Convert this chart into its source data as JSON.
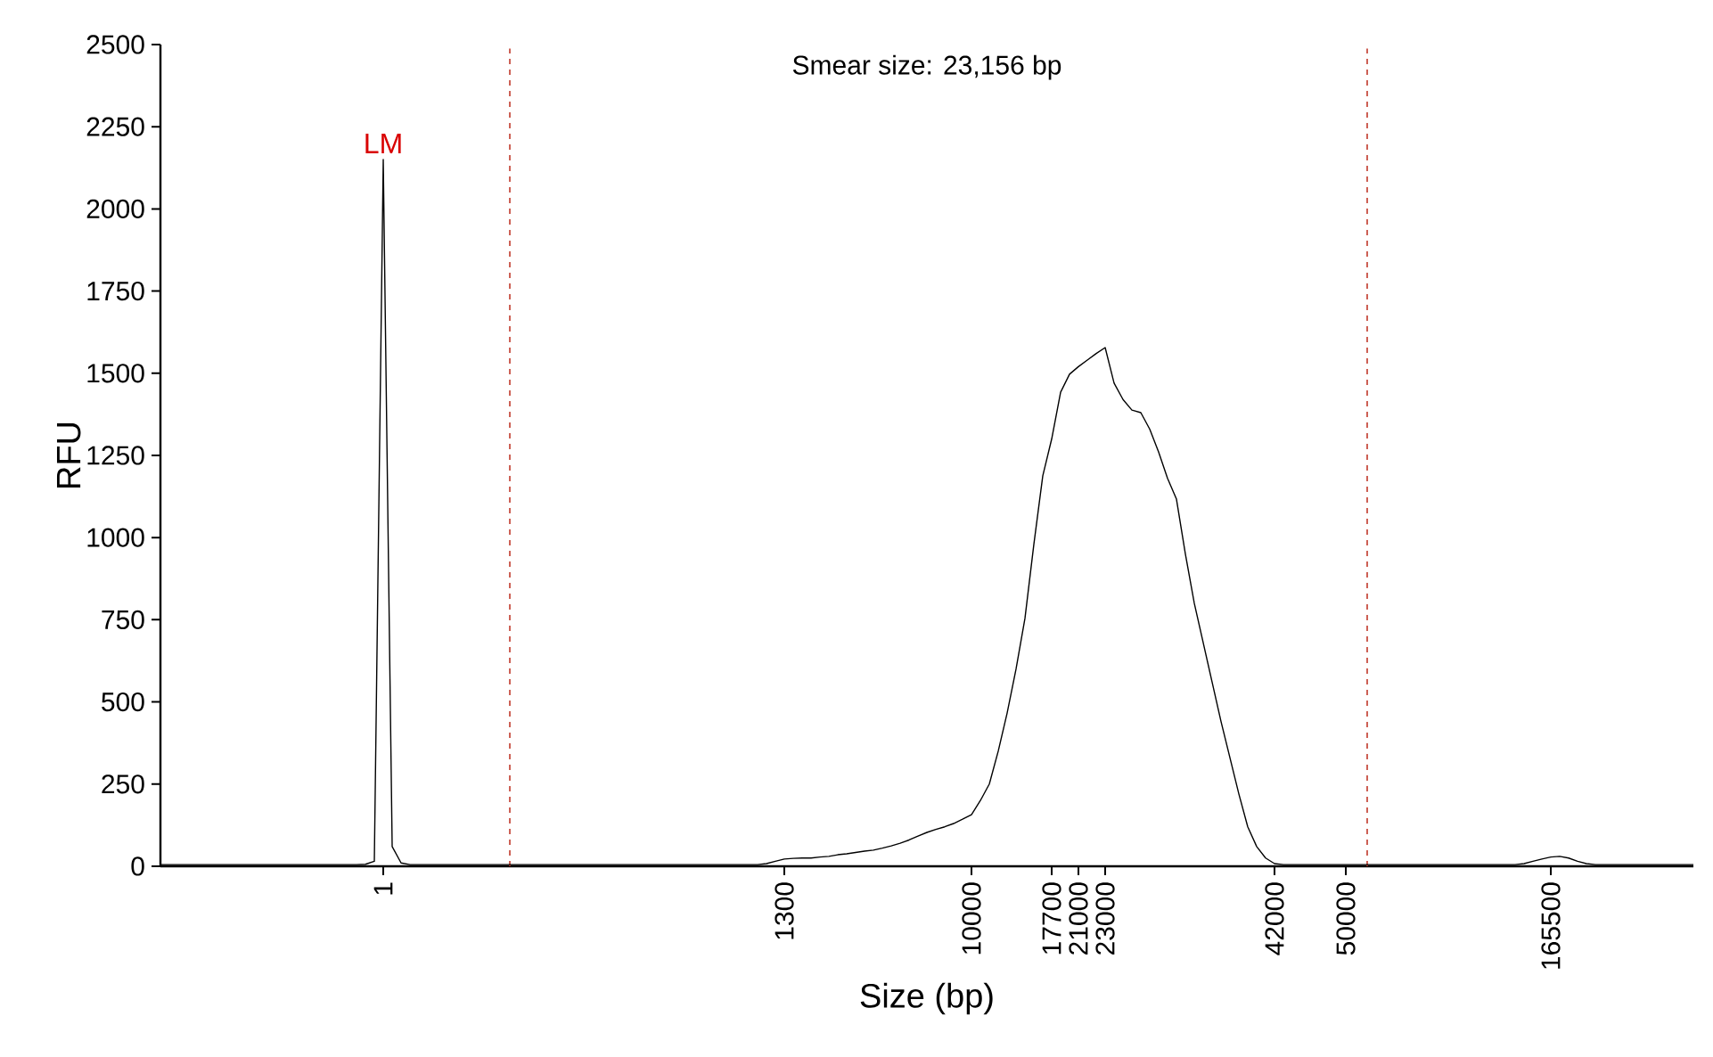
{
  "chart_data": {
    "type": "line",
    "xlabel": "Size (bp)",
    "ylabel": "RFU",
    "annotations": [
      {
        "text": "LM",
        "x": "1",
        "y": 2150
      },
      "Smear size: 23,156 bp"
    ],
    "categories": [
      null,
      null,
      null,
      null,
      null,
      null,
      null,
      null,
      null,
      null,
      null,
      null,
      null,
      null,
      null,
      null,
      null,
      null,
      null,
      null,
      null,
      null,
      null,
      null,
      null,
      "1",
      null,
      null,
      null,
      null,
      null,
      null,
      null,
      null,
      null,
      null,
      null,
      null,
      null,
      null,
      null,
      null,
      null,
      null,
      null,
      null,
      null,
      null,
      null,
      null,
      null,
      null,
      null,
      null,
      null,
      null,
      null,
      null,
      null,
      null,
      null,
      null,
      null,
      null,
      null,
      null,
      null,
      null,
      null,
      null,
      "1300",
      null,
      null,
      null,
      null,
      null,
      null,
      null,
      null,
      null,
      null,
      null,
      null,
      null,
      null,
      null,
      null,
      null,
      null,
      null,
      null,
      "10000",
      null,
      null,
      null,
      null,
      null,
      null,
      null,
      null,
      "17700",
      null,
      null,
      "21000",
      null,
      null,
      "23000",
      null,
      null,
      null,
      null,
      null,
      null,
      null,
      null,
      null,
      null,
      null,
      null,
      null,
      null,
      null,
      null,
      null,
      null,
      "42000",
      null,
      null,
      null,
      null,
      null,
      null,
      null,
      "50000",
      null,
      null,
      null,
      null,
      null,
      null,
      null,
      null,
      null,
      null,
      null,
      null,
      null,
      null,
      null,
      null,
      null,
      null,
      null,
      null,
      null,
      null,
      "165500",
      null,
      null,
      null,
      null,
      null,
      null,
      null,
      null,
      null,
      null,
      null,
      null,
      null,
      null,
      null,
      null
    ],
    "values": [
      5,
      5,
      5,
      5,
      5,
      5,
      5,
      5,
      5,
      5,
      5,
      5,
      5,
      5,
      5,
      5,
      5,
      5,
      5,
      5,
      5,
      5,
      5,
      6,
      15,
      2150,
      60,
      10,
      5,
      5,
      5,
      5,
      5,
      5,
      5,
      5,
      5,
      5,
      5,
      5,
      5,
      5,
      5,
      5,
      5,
      5,
      5,
      5,
      5,
      5,
      5,
      5,
      5,
      5,
      5,
      5,
      5,
      5,
      5,
      5,
      5,
      5,
      5,
      5,
      5,
      5,
      5,
      5,
      8,
      15,
      22,
      24,
      25,
      25,
      28,
      30,
      35,
      38,
      42,
      46,
      49,
      55,
      62,
      70,
      80,
      92,
      103,
      112,
      120,
      130,
      143,
      157,
      200,
      250,
      350,
      466,
      600,
      754,
      980,
      1188,
      1300,
      1442,
      1497,
      1520,
      1540,
      1560,
      1578,
      1470,
      1420,
      1388,
      1380,
      1330,
      1260,
      1180,
      1117,
      950,
      800,
      680,
      560,
      440,
      330,
      220,
      120,
      60,
      25,
      8,
      5,
      5,
      5,
      5,
      5,
      5,
      5,
      5,
      5,
      5,
      5,
      5,
      5,
      5,
      5,
      5,
      5,
      5,
      5,
      5,
      5,
      5,
      5,
      5,
      5,
      5,
      5,
      8,
      15,
      22,
      28,
      30,
      25,
      15,
      8,
      5,
      5,
      5,
      5,
      5,
      5,
      5,
      5,
      5,
      5,
      5,
      5
    ],
    "color": "#000000",
    "ylim": [
      0,
      2500
    ],
    "yticks": [
      0,
      250,
      500,
      750,
      1000,
      1250,
      1500,
      1750,
      2000,
      2250,
      2500
    ],
    "grid": false
  }
}
